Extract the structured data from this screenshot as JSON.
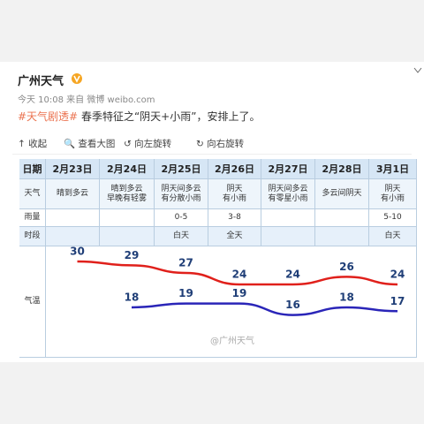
{
  "header": {
    "name": "广州天气",
    "meta": "今天 10:08 来自 微博 weibo.com"
  },
  "post": {
    "tag": "#天气剧透#",
    "text": "春季特征之“阴天+小雨”，安排上了。"
  },
  "toolbar": [
    "收起",
    "查看大图",
    "向左旋转",
    "向右旋转"
  ],
  "table": {
    "row_labels": [
      "日期",
      "天气",
      "雨量",
      "时段",
      "气温"
    ],
    "days": [
      "2月23日",
      "2月24日",
      "2月25日",
      "2月26日",
      "2月27日",
      "2月28日",
      "3月1日"
    ],
    "weather": [
      [
        "晴到多云"
      ],
      [
        "晴到多云",
        "早晚有轻雾"
      ],
      [
        "阴天间多云",
        "有分散小雨"
      ],
      [
        "阴天",
        "有小雨"
      ],
      [
        "阴天间多云",
        "有零星小雨"
      ],
      [
        "多云间阴天"
      ],
      [
        "阴天",
        "有小雨"
      ]
    ],
    "rain": [
      null,
      null,
      "0-5",
      "3-8",
      null,
      null,
      "5-10"
    ],
    "period": [
      null,
      null,
      "白天",
      "全天",
      null,
      null,
      "白天"
    ],
    "high": [
      30,
      29,
      27,
      24,
      24,
      26,
      24
    ],
    "low": [
      null,
      18,
      19,
      19,
      16,
      18,
      17
    ]
  },
  "watermark": "@广州天气"
}
